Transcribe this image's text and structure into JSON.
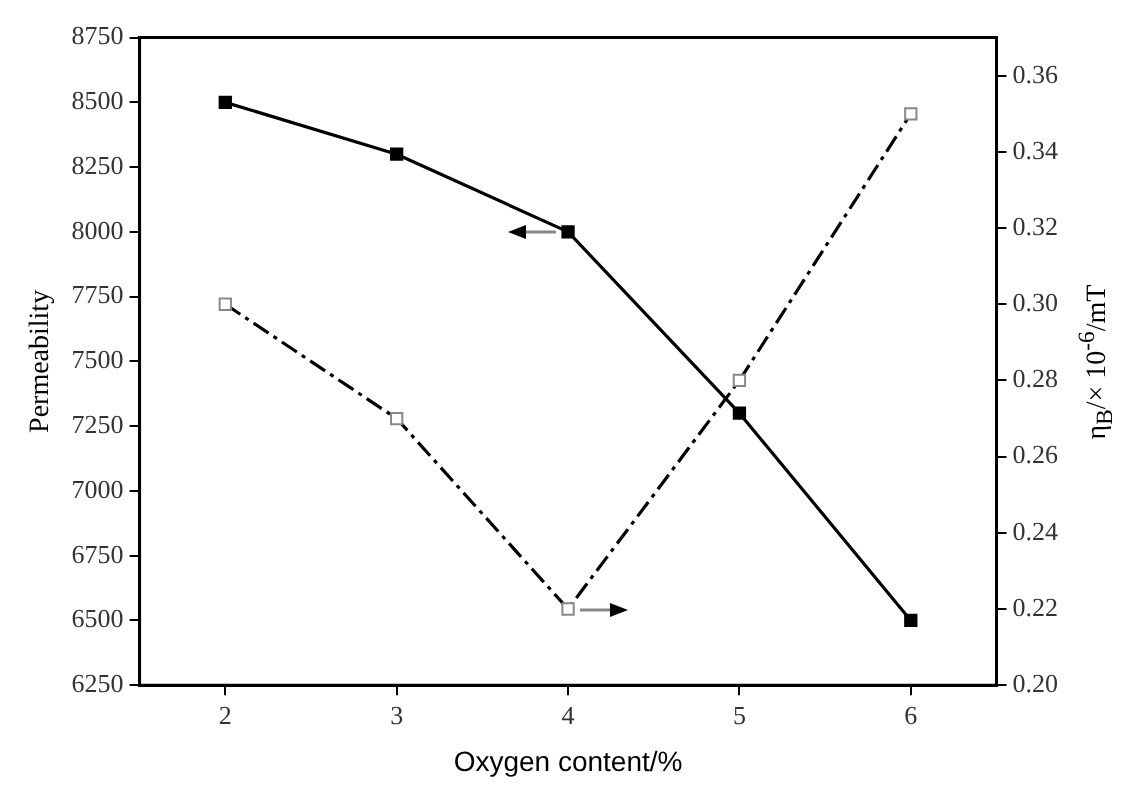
{
  "chart_data": {
    "type": "line",
    "xlabel": "Oxygen content/%",
    "ylabel": "Permeability",
    "y2label": "η$_{B}$/× 10$^{-6}$/mT",
    "x": [
      2,
      3,
      4,
      5,
      6
    ],
    "xlim": [
      1.5,
      6.5
    ],
    "xticks": [
      2,
      3,
      4,
      5,
      6
    ],
    "ylim": [
      6250,
      8750
    ],
    "yticks": [
      6250,
      6500,
      6750,
      7000,
      7250,
      7500,
      7750,
      8000,
      8250,
      8500,
      8750
    ],
    "y2lim": [
      0.2,
      0.37
    ],
    "y2ticks": [
      {
        "value": 0.2,
        "label": "0.20"
      },
      0.22,
      0.24,
      0.26,
      0.28,
      {
        "value": 0.3,
        "label": "0.30"
      },
      0.32,
      0.34,
      0.36
    ],
    "grid": false,
    "legend": false,
    "series": [
      {
        "color": "#000000",
        "values": [
          8500,
          8300,
          8000,
          7300,
          6500
        ],
        "marker": "square",
        "line_style": "solid"
      },
      {
        "color": "#000000",
        "values": [
          0.3,
          0.27,
          0.22,
          0.28,
          0.35
        ],
        "marker": "square",
        "line_style": "dashed",
        "axis": "y2"
      }
    ]
  }
}
